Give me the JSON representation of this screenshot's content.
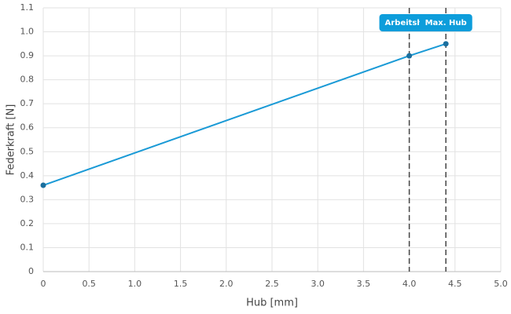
{
  "chart_data": {
    "type": "line",
    "x_label": "Hub [mm]",
    "y_label": "Federkraft [N]",
    "series": [
      {
        "name": "Federkraft",
        "color": "#1a9ad6",
        "marker_color": "#1b6f9e",
        "x": [
          0,
          4.0,
          4.4
        ],
        "values": [
          0.36,
          0.9,
          0.95
        ]
      }
    ],
    "xlim": [
      0,
      5
    ],
    "ylim": [
      0,
      1.1
    ],
    "xticks": [
      0,
      0.5,
      {
        "value": 1,
        "label": "1.0"
      },
      1.5,
      {
        "value": 2,
        "label": "2.0"
      },
      2.5,
      {
        "value": 3,
        "label": "3.0"
      },
      3.5,
      {
        "value": 4,
        "label": "4.0"
      },
      4.5,
      {
        "value": 5,
        "label": "5.0"
      }
    ],
    "yticks": [
      0,
      0.1,
      0.2,
      0.3,
      0.4,
      0.5,
      0.6,
      0.7,
      0.8,
      0.9,
      {
        "value": 1,
        "label": "1.0"
      },
      1.1
    ],
    "grid": true,
    "annotations": [
      {
        "x": 4.0,
        "label": "Arbeitshub",
        "color": "#0d9ddb"
      },
      {
        "x": 4.4,
        "label": "Max. Hub",
        "color": "#0d9ddb"
      }
    ]
  }
}
